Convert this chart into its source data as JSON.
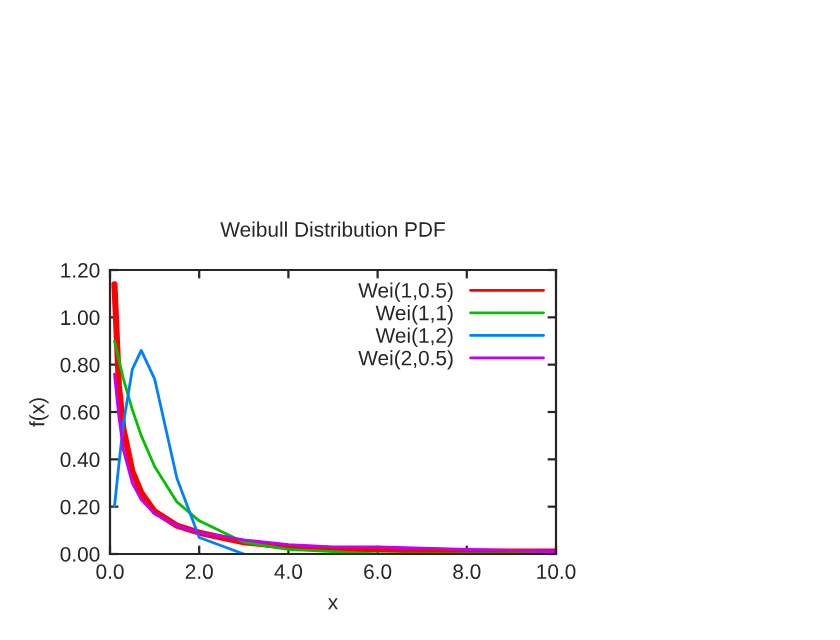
{
  "chart_data": {
    "type": "line",
    "title": "Weibull Distribution PDF",
    "xlabel": "x",
    "ylabel": "f(x)",
    "x": [
      0.1,
      0.2,
      0.3,
      0.5,
      0.7,
      1.0,
      1.5,
      2.0,
      3.0,
      4.0,
      5.0,
      6.0,
      8.0,
      10.0
    ],
    "series": [
      {
        "name": "Wei(1,0.5)",
        "color": "#ff0000",
        "values": [
          1.14,
          0.71,
          0.53,
          0.35,
          0.26,
          0.18,
          0.12,
          0.09,
          0.05,
          0.03,
          0.02,
          0.02,
          0.01,
          0.01
        ]
      },
      {
        "name": "Wei(1,1)",
        "color": "#00c000",
        "values": [
          0.9,
          0.82,
          0.74,
          0.61,
          0.5,
          0.37,
          0.22,
          0.14,
          0.05,
          0.02,
          0.01,
          0.0,
          0.0,
          0.0
        ]
      },
      {
        "name": "Wei(1,2)",
        "color": "#0080ff",
        "values": [
          0.2,
          0.38,
          0.55,
          0.78,
          0.86,
          0.74,
          0.32,
          0.07,
          0.0,
          null,
          null,
          null,
          null,
          null
        ]
      },
      {
        "name": "Wei(2,0.5)",
        "color": "#c000ff",
        "values": [
          0.76,
          0.58,
          0.44,
          0.3,
          0.23,
          0.17,
          0.12,
          0.09,
          0.06,
          0.04,
          0.03,
          0.03,
          0.02,
          0.01
        ]
      }
    ],
    "xlim": [
      0.0,
      10.0
    ],
    "ylim": [
      0.0,
      1.2
    ],
    "xticks": [
      {
        "value": 0,
        "label": "0.0"
      },
      {
        "value": 2,
        "label": "2.0"
      },
      {
        "value": 4,
        "label": "4.0"
      },
      {
        "value": 6,
        "label": "6.0"
      },
      {
        "value": 8,
        "label": "8.0"
      },
      {
        "value": 10,
        "label": "10.0"
      }
    ],
    "yticks": [
      {
        "value": 0,
        "label": "0.00"
      },
      {
        "value": 0.2,
        "label": "0.20"
      },
      {
        "value": 0.4,
        "label": "0.40"
      },
      {
        "value": 0.6,
        "label": "0.60"
      },
      {
        "value": 0.8,
        "label": "0.80"
      },
      {
        "value": 1.0,
        "label": "1.00"
      },
      {
        "value": 1.2,
        "label": "1.20"
      }
    ],
    "legend": "top right",
    "grid": false
  }
}
